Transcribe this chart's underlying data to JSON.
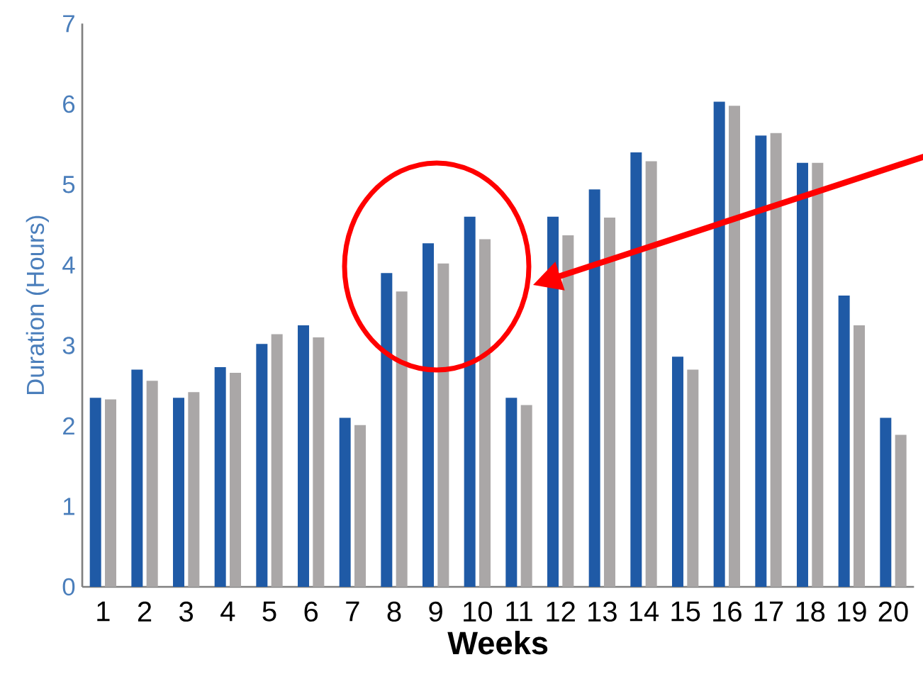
{
  "chart_data": {
    "type": "bar",
    "xlabel": "Weeks",
    "ylabel": "Duration (Hours)",
    "categories": [
      "1",
      "2",
      "3",
      "4",
      "5",
      "6",
      "7",
      "8",
      "9",
      "10",
      "11",
      "12",
      "13",
      "14",
      "15",
      "16",
      "17",
      "18",
      "19",
      "20"
    ],
    "series": [
      {
        "color": "#1f5aa6",
        "values": [
          2.35,
          2.7,
          2.35,
          2.73,
          3.02,
          3.25,
          2.1,
          3.9,
          4.27,
          4.6,
          2.35,
          4.6,
          4.94,
          5.4,
          2.86,
          6.03,
          5.61,
          5.27,
          3.62,
          2.1
        ]
      },
      {
        "color": "#aaa7a7",
        "values": [
          2.33,
          2.56,
          2.42,
          2.66,
          3.14,
          3.1,
          2.01,
          3.67,
          4.02,
          4.32,
          2.26,
          4.37,
          4.59,
          5.29,
          2.7,
          5.98,
          5.64,
          5.27,
          3.25,
          1.89
        ]
      }
    ],
    "ylim": [
      0,
      7
    ],
    "yticks": [
      0,
      1,
      2,
      3,
      4,
      5,
      6,
      7
    ]
  }
}
